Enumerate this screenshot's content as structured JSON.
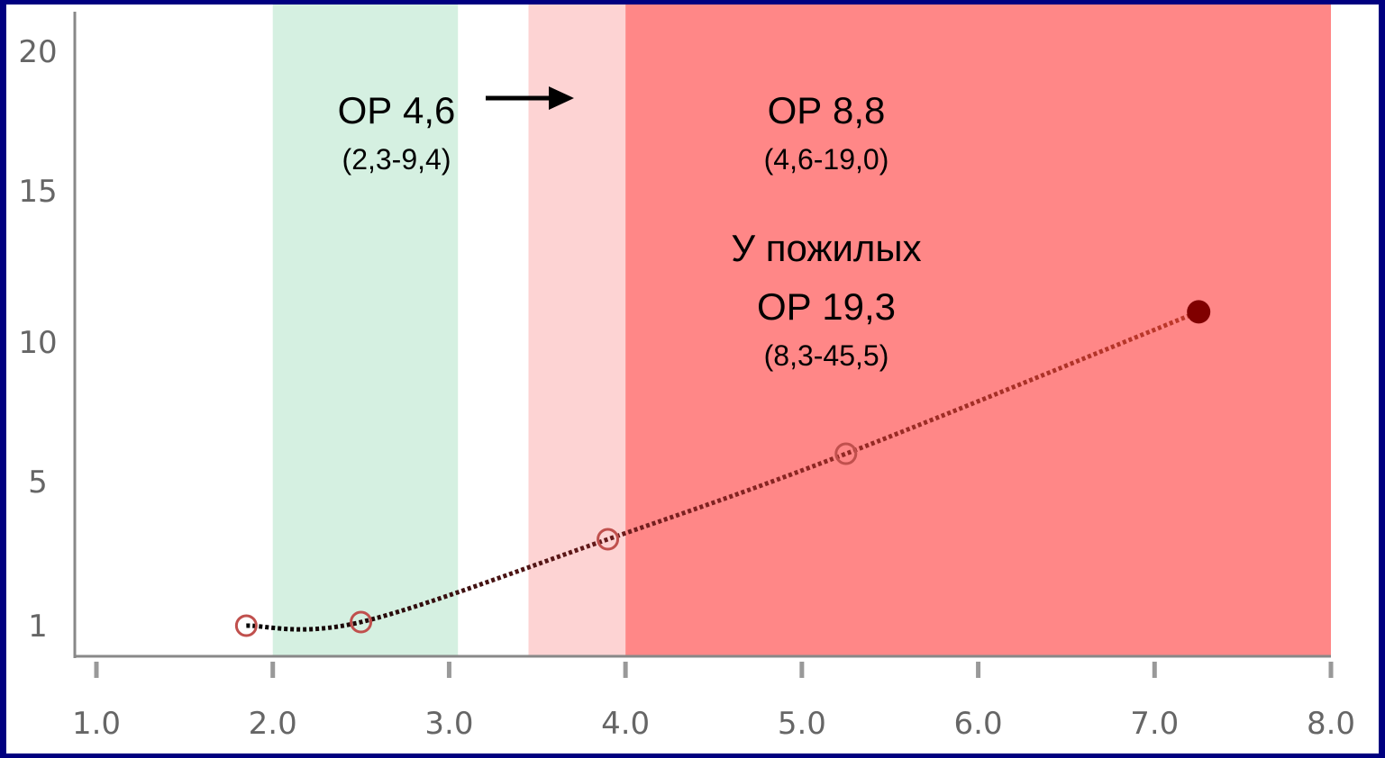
{
  "chart_data": {
    "type": "line",
    "title": "",
    "xlabel": "",
    "ylabel": "",
    "xlim": [
      1.0,
      8.0
    ],
    "ylim": [
      0,
      20
    ],
    "x_ticks": [
      "1.0",
      "2.0",
      "3.0",
      "4.0",
      "5.0",
      "6.0",
      "7.0",
      "8.0"
    ],
    "y_ticks": [
      "1",
      "5",
      "10",
      "15",
      "20"
    ],
    "bands": [
      {
        "name": "green-band",
        "from": 2.0,
        "to": 3.05,
        "color": "#d5f0e1"
      },
      {
        "name": "light-red-band",
        "from": 3.45,
        "to": 4.0,
        "color": "#fdd3d3"
      },
      {
        "name": "red-band",
        "from": 4.0,
        "to": 8.0,
        "color": "#ff8787"
      }
    ],
    "series": [
      {
        "x": [
          1.85,
          2.5,
          3.9,
          5.25,
          7.25
        ],
        "y": [
          1.0,
          1.1,
          3.4,
          6.0,
          11.0
        ],
        "markers": [
          "open",
          "open",
          "open",
          "open",
          "filled"
        ]
      }
    ],
    "annotations": {
      "rr1": {
        "main": "ОР 4,6",
        "ci": "(2,3-9,4)"
      },
      "rr2": {
        "main": "ОР 8,8",
        "ci": "(4,6-19,0)"
      },
      "elderly": {
        "label": "У пожилых",
        "main": "ОР 19,3",
        "ci": "(8,3-45,5)"
      }
    },
    "colors": {
      "line": "#c0392b",
      "marker": "#c0504d",
      "filled_marker": "#800000",
      "axis": "#888888"
    }
  }
}
